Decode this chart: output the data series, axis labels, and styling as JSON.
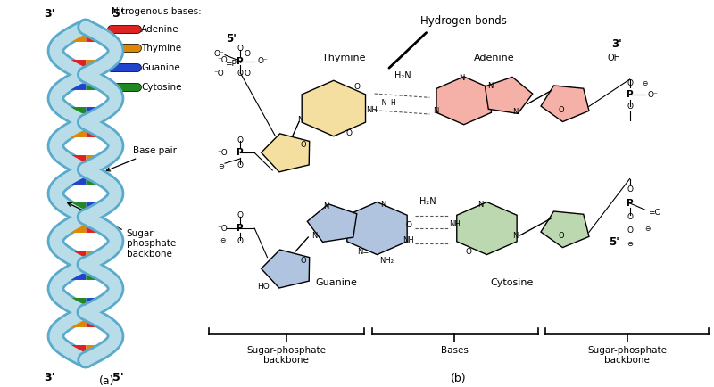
{
  "bg_color": "#ffffff",
  "helix_fill": "#b8dde8",
  "helix_edge": "#5aaacc",
  "adenine_bar": "#dd2222",
  "thymine_bar": "#dd8800",
  "guanine_bar": "#2244cc",
  "cytosine_bar": "#228822",
  "thymine_ring_color": "#f5dfa0",
  "adenine_ring_color": "#f5b0a8",
  "guanine_ring_color": "#b0c4e0",
  "cytosine_ring_color": "#bcd8b0",
  "legend_title": "Nitrogenous bases:",
  "legend_items": [
    {
      "label": "Adenine",
      "color": "#dd2222"
    },
    {
      "label": "Thymine",
      "color": "#dd8800"
    },
    {
      "label": "Guanine",
      "color": "#2244cc"
    },
    {
      "label": "Cytosine",
      "color": "#228822"
    }
  ],
  "title_a": "(a)",
  "title_b": "(b)",
  "label_bp": "Base pair",
  "label_sugar": "Sugar\nphosphate\nbackbone",
  "hbond_label": "Hydrogen bonds",
  "thymine_label": "Thymine",
  "adenine_label": "Adenine",
  "guanine_label": "Guanine",
  "cytosine_label": "Cytosine",
  "sugar_left": "Sugar-phosphate\nbackbone",
  "bases_mid": "Bases",
  "sugar_right": "Sugar-phosphate\nbackbone"
}
